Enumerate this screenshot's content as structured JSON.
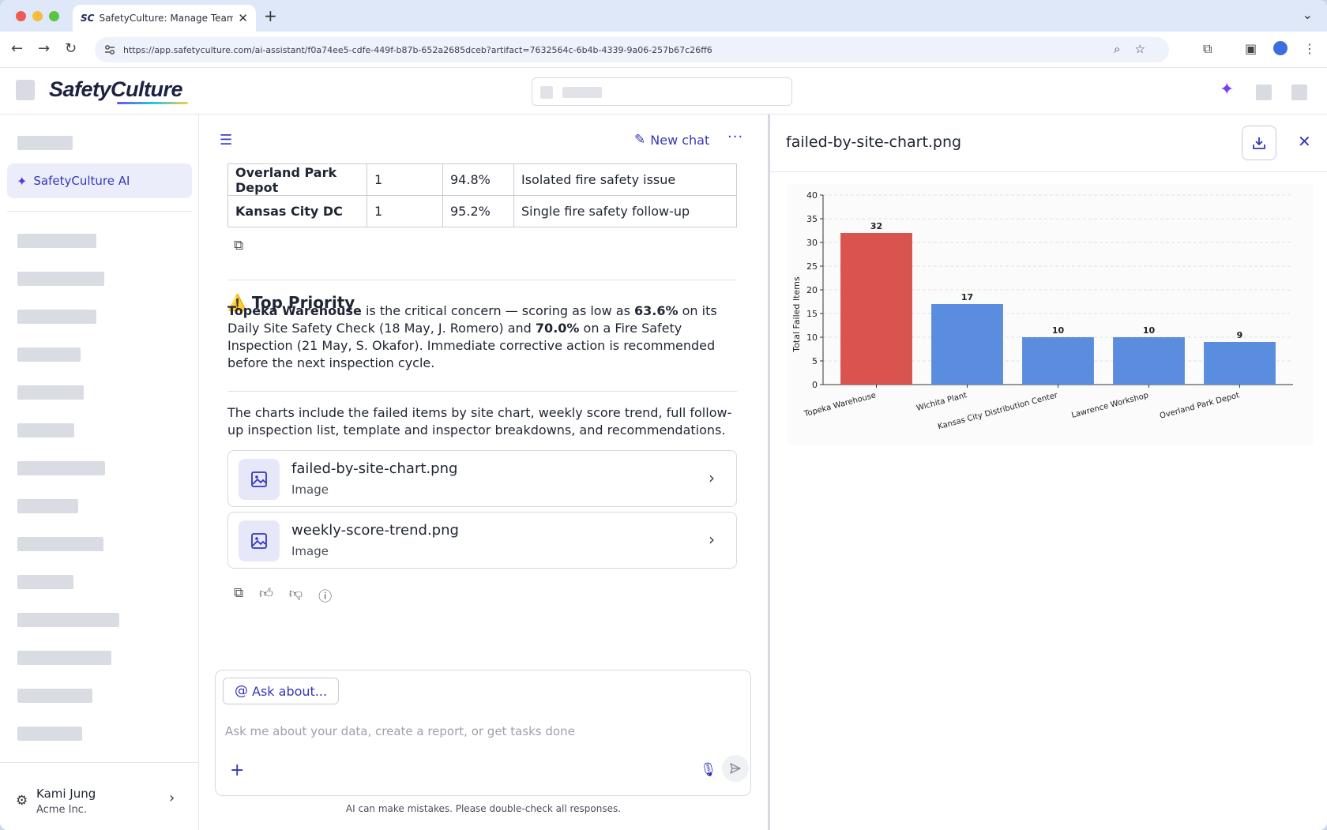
{
  "browser": {
    "tab_favicon": "SC",
    "tab_title": "SafetyCulture: Manage Teams and...",
    "url": "https://app.safetyculture.com/ai-assistant/f0a74ee5-cdfe-449f-b87b-652a2685dceb?artifact=7632564c-6b4b-4339-9a06-257b67c26ff6"
  },
  "app": {
    "logo": "SafetyCulture",
    "accent_color": "#3536b8"
  },
  "sidebar": {
    "active_item": "SafetyCulture AI",
    "user_name": "Kami Jung",
    "user_org": "Acme Inc."
  },
  "chat": {
    "new_chat_label": "New chat",
    "table_rows": [
      {
        "site": "Overland Park Depot",
        "count": "1",
        "score": "94.8%",
        "note": "Isolated fire safety issue"
      },
      {
        "site": "Kansas City DC",
        "count": "1",
        "score": "95.2%",
        "note": "Single fire safety follow-up"
      }
    ],
    "priority_heading": "Top Priority",
    "priority_warning_icon": "⚠️",
    "priority_site": "Topeka Warehouse",
    "priority_text_1": " is the critical concern — scoring as low as ",
    "priority_score_1": "63.6%",
    "priority_text_2": " on its Daily Site Safety Check (18 May, J. Romero) and ",
    "priority_score_2": "70.0%",
    "priority_text_3": " on a Fire Safety Inspection (21 May, S. Okafor). Immediate corrective action is recommended before the next inspection cycle.",
    "charts_summary": "The charts include the failed items by site chart, weekly score trend, full follow-up inspection list, template and inspector breakdowns, and recommendations.",
    "artifacts": [
      {
        "name": "failed-by-site-chart.png",
        "type": "Image"
      },
      {
        "name": "weekly-score-trend.png",
        "type": "Image"
      }
    ],
    "ask_about_label": "Ask about...",
    "input_placeholder": "Ask me about your data, create a report, or get tasks done",
    "disclaimer": "AI can make mistakes. Please double-check all responses."
  },
  "panel": {
    "title": "failed-by-site-chart.png"
  },
  "chart_data": {
    "type": "bar",
    "categories": [
      "Topeka Warehouse",
      "Wichita Plant",
      "Kansas City Distribution Center",
      "Lawrence Workshop",
      "Overland Park Depot"
    ],
    "values": [
      32,
      17,
      10,
      10,
      9
    ],
    "value_labels": [
      "32",
      "17",
      "10",
      "10",
      "9"
    ],
    "bar_colors": [
      "#d9534f",
      "#5b8dde",
      "#5b8dde",
      "#5b8dde",
      "#5b8dde"
    ],
    "title": "",
    "xlabel": "",
    "ylabel": "Total Failed Items",
    "ylim": [
      0,
      40
    ],
    "yticks": [
      0,
      5,
      10,
      15,
      20,
      25,
      30,
      35,
      40
    ],
    "grid": "horizontal dashed"
  }
}
